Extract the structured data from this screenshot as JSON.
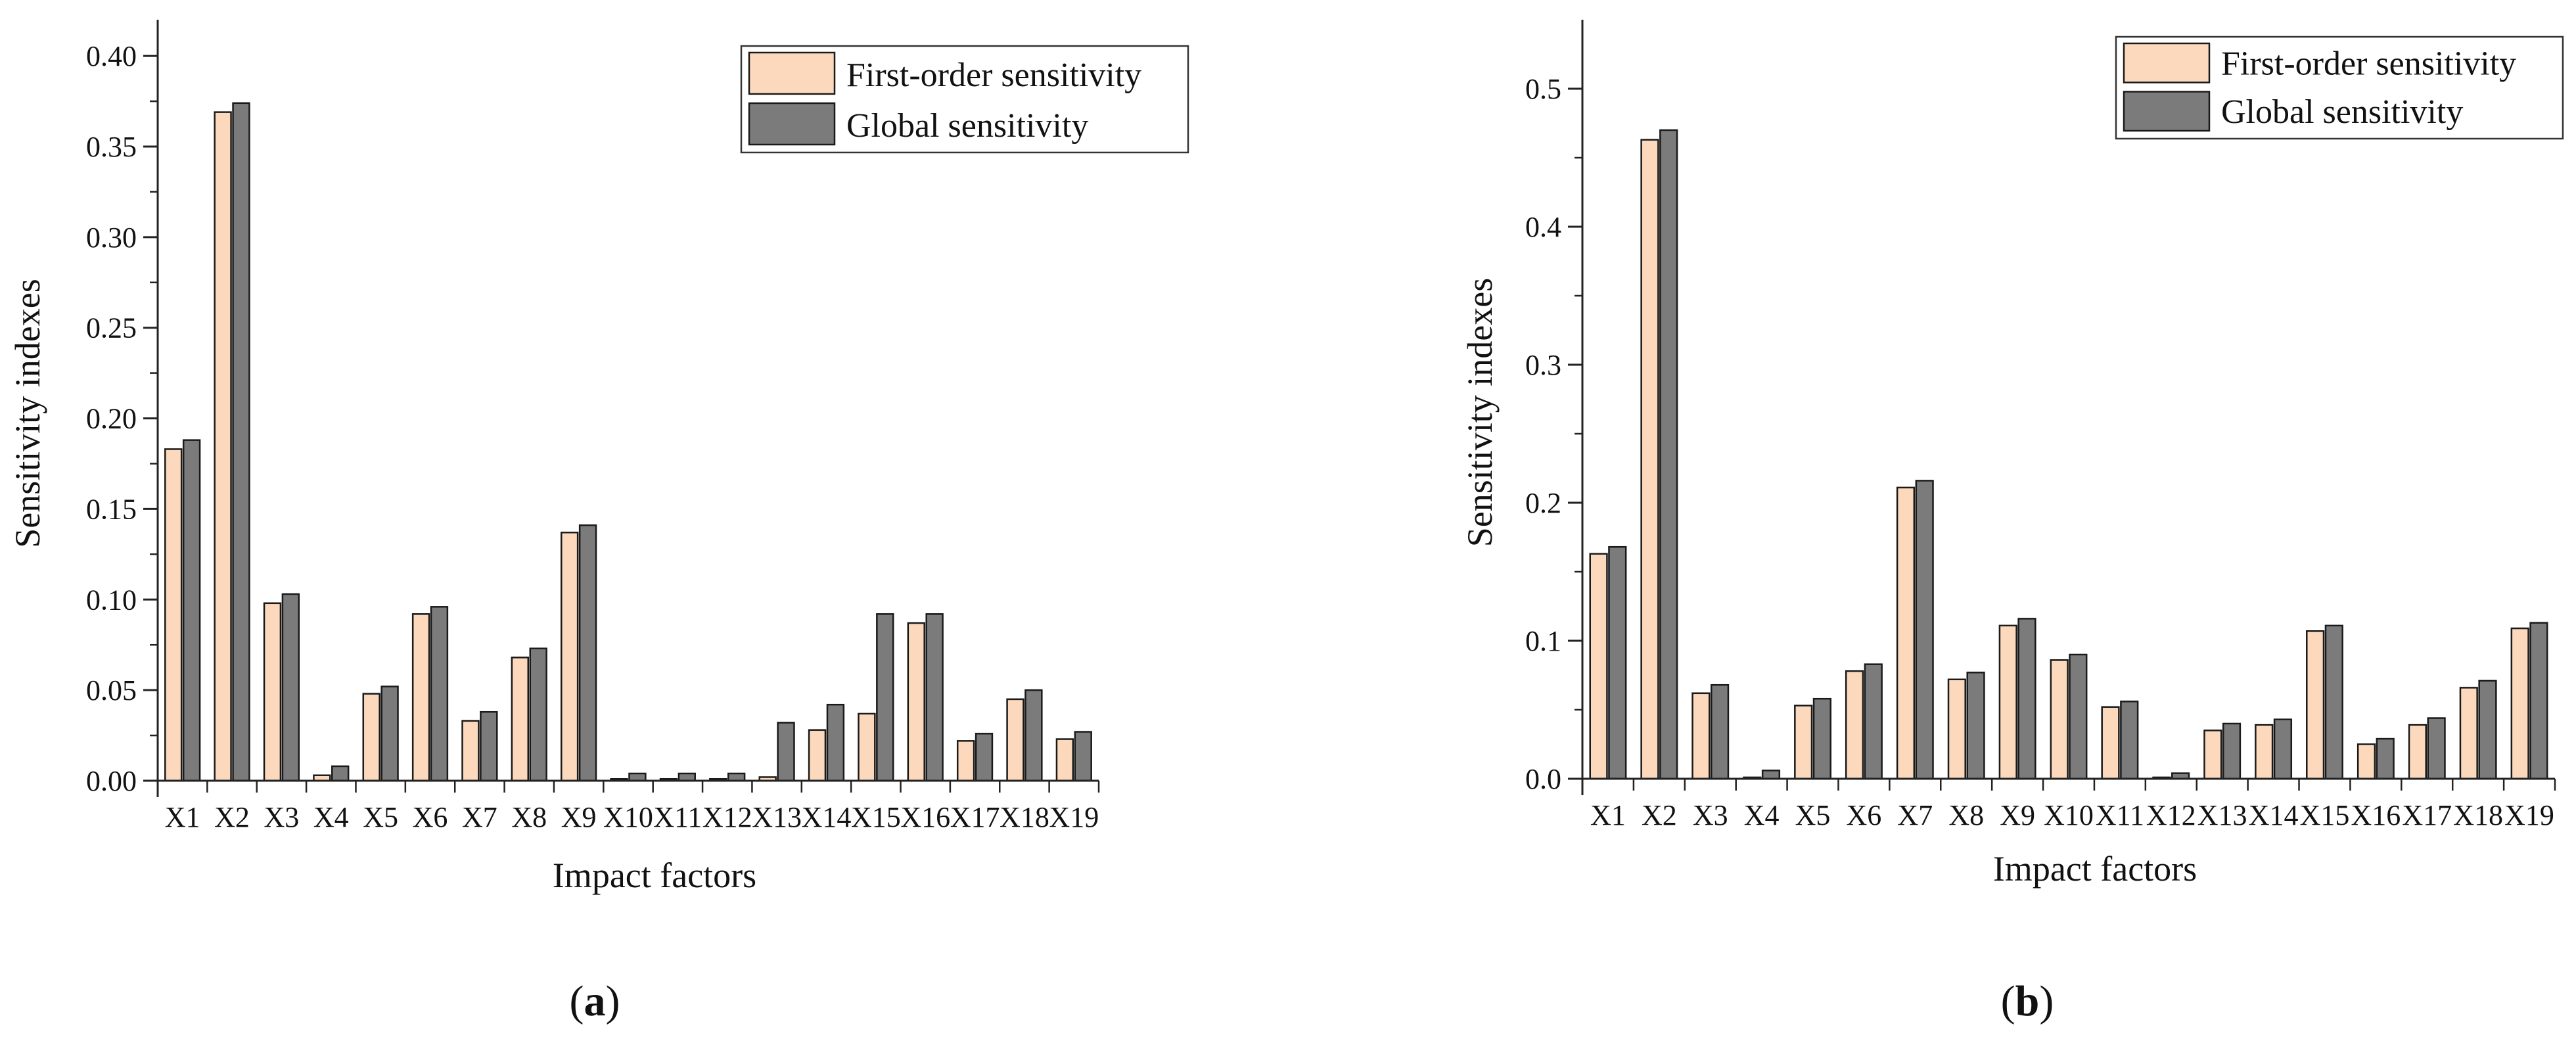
{
  "colors": {
    "first_order": "#fcd9bc",
    "global": "#7b7b7b",
    "axis": "#222222"
  },
  "chart_data": [
    {
      "type": "bar",
      "panel_label": "a",
      "xlabel": "Impact factors",
      "ylabel": "Sensitivity indexes",
      "ylim": [
        0,
        0.42
      ],
      "yticks": [
        0,
        0.05,
        0.1,
        0.15,
        0.2,
        0.25,
        0.3,
        0.35,
        0.4
      ],
      "ytick_labels": [
        "0.00",
        "0.05",
        "0.10",
        "0.15",
        "0.20",
        "0.25",
        "0.30",
        "0.35",
        "0.40"
      ],
      "legend_position": "top-right",
      "categories": [
        "X1",
        "X2",
        "X3",
        "X4",
        "X5",
        "X6",
        "X7",
        "X8",
        "X9",
        "X10",
        "X11",
        "X12",
        "X13",
        "X14",
        "X15",
        "X16",
        "X17",
        "X18",
        "X19"
      ],
      "series": [
        {
          "name": "First-order sensitivity",
          "values": [
            0.183,
            0.369,
            0.098,
            0.003,
            0.048,
            0.092,
            0.033,
            0.068,
            0.137,
            0.001,
            0.001,
            0.001,
            0.002,
            0.028,
            0.037,
            0.087,
            0.022,
            0.045,
            0.023
          ]
        },
        {
          "name": "Global sensitivity",
          "values": [
            0.188,
            0.374,
            0.103,
            0.008,
            0.052,
            0.096,
            0.038,
            0.073,
            0.141,
            0.004,
            0.004,
            0.004,
            0.032,
            0.042,
            0.092,
            0.092,
            0.026,
            0.05,
            0.027
          ]
        }
      ]
    },
    {
      "type": "bar",
      "panel_label": "b",
      "xlabel": "Impact factors",
      "ylabel": "Sensitivity indexes",
      "ylim": [
        0,
        0.55
      ],
      "yticks": [
        0,
        0.1,
        0.2,
        0.3,
        0.4,
        0.5
      ],
      "ytick_labels": [
        "0.0",
        "0.1",
        "0.2",
        "0.3",
        "0.4",
        "0.5"
      ],
      "legend_position": "top-right",
      "categories": [
        "X1",
        "X2",
        "X3",
        "X4",
        "X5",
        "X6",
        "X7",
        "X8",
        "X9",
        "X10",
        "X11",
        "X12",
        "X13",
        "X14",
        "X15",
        "X16",
        "X17",
        "X18",
        "X19"
      ],
      "series": [
        {
          "name": "First-order sensitivity",
          "values": [
            0.163,
            0.463,
            0.062,
            0.001,
            0.053,
            0.078,
            0.211,
            0.072,
            0.111,
            0.086,
            0.052,
            0.001,
            0.035,
            0.039,
            0.107,
            0.025,
            0.039,
            0.066,
            0.109
          ]
        },
        {
          "name": "Global sensitivity",
          "values": [
            0.168,
            0.47,
            0.068,
            0.006,
            0.058,
            0.083,
            0.216,
            0.077,
            0.116,
            0.09,
            0.056,
            0.004,
            0.04,
            0.043,
            0.111,
            0.029,
            0.044,
            0.071,
            0.113
          ]
        }
      ]
    }
  ]
}
